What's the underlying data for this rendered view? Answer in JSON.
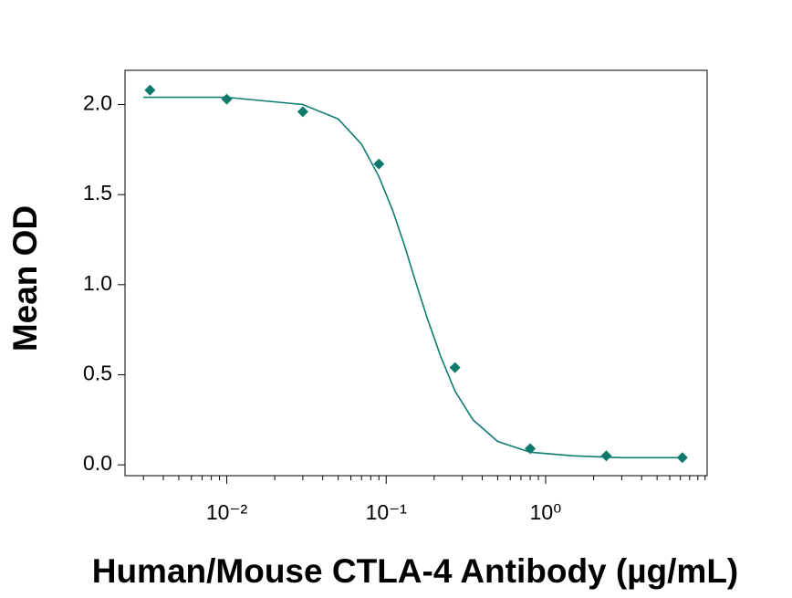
{
  "chart_data": {
    "type": "scatter",
    "x_label": "Human/Mouse CTLA-4 Antibody (µg/mL)",
    "y_label": "Mean OD",
    "xscale": "log",
    "xlim": [
      0.0023,
      10.3
    ],
    "ylim": [
      -0.06,
      2.19
    ],
    "xticks": [
      {
        "value": 0.01,
        "label": "10⁻²"
      },
      {
        "value": 0.1,
        "label": "10⁻¹"
      },
      {
        "value": 1,
        "label": "10⁰"
      }
    ],
    "xminorticks": [
      0.003,
      0.004,
      0.005,
      0.006,
      0.007,
      0.008,
      0.009,
      0.02,
      0.03,
      0.04,
      0.05,
      0.06,
      0.07,
      0.08,
      0.09,
      0.2,
      0.3,
      0.4,
      0.5,
      0.6,
      0.7,
      0.8,
      0.9,
      2,
      3,
      4,
      5,
      6,
      7,
      8,
      9,
      10
    ],
    "yticks": [
      {
        "value": 0,
        "label": "0.0"
      },
      0.5,
      {
        "value": 1,
        "label": "1.0"
      },
      1.5,
      {
        "value": 2,
        "label": "2.0"
      }
    ],
    "series": [
      {
        "type": "scatter",
        "color": "#0e7a6e",
        "x": [
          0.0033,
          0.01,
          0.03,
          0.09,
          0.27,
          0.8,
          2.4,
          7.2
        ],
        "values": [
          2.08,
          2.03,
          1.96,
          1.67,
          0.54,
          0.09,
          0.05,
          0.04
        ]
      },
      {
        "type": "line",
        "color": "#0f7b72",
        "x": [
          0.003,
          0.01,
          0.03,
          0.05,
          0.07,
          0.09,
          0.11,
          0.13,
          0.15,
          0.18,
          0.22,
          0.27,
          0.35,
          0.5,
          0.8,
          1.5,
          3,
          7
        ],
        "values": [
          2.04,
          2.04,
          2.0,
          1.92,
          1.78,
          1.6,
          1.41,
          1.22,
          1.04,
          0.82,
          0.6,
          0.41,
          0.25,
          0.13,
          0.07,
          0.05,
          0.04,
          0.04
        ]
      }
    ]
  }
}
